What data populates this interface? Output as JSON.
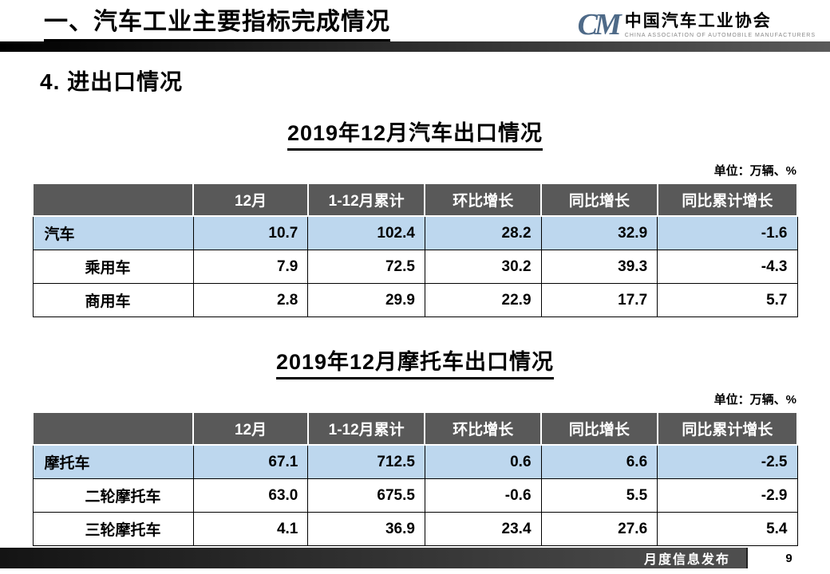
{
  "header": {
    "title": "一、汽车工业主要指标完成情况",
    "logo": {
      "mark": "CM",
      "name": "中国汽车工业协会",
      "subtitle": "CHINA ASSOCIATION OF AUTOMOBILE MANUFACTURERS"
    }
  },
  "section_title": "4. 进出口情况",
  "tables": [
    {
      "title": "2019年12月汽车出口情况",
      "unit": "单位：万辆、%",
      "columns": [
        "",
        "12月",
        "1-12月累计",
        "环比增长",
        "同比增长",
        "同比累计增长"
      ],
      "rows": [
        {
          "label": "汽车",
          "values": [
            "10.7",
            "102.4",
            "28.2",
            "32.9",
            "-1.6"
          ]
        },
        {
          "label": "乘用车",
          "values": [
            "7.9",
            "72.5",
            "30.2",
            "39.3",
            "-4.3"
          ]
        },
        {
          "label": "商用车",
          "values": [
            "2.8",
            "29.9",
            "22.9",
            "17.7",
            "5.7"
          ]
        }
      ]
    },
    {
      "title": "2019年12月摩托车出口情况",
      "unit": "单位：万辆、%",
      "columns": [
        "",
        "12月",
        "1-12月累计",
        "环比增长",
        "同比增长",
        "同比累计增长"
      ],
      "rows": [
        {
          "label": "摩托车",
          "values": [
            "67.1",
            "712.5",
            "0.6",
            "6.6",
            "-2.5"
          ]
        },
        {
          "label": "二轮摩托车",
          "values": [
            "63.0",
            "675.5",
            "-0.6",
            "5.5",
            "-2.9"
          ]
        },
        {
          "label": "三轮摩托车",
          "values": [
            "4.1",
            "36.9",
            "23.4",
            "27.6",
            "5.4"
          ]
        }
      ]
    }
  ],
  "footer": {
    "label": "月度信息发布",
    "page_number": "9"
  },
  "colors": {
    "table_header_bg": "#595959",
    "highlight_row_bg": "#BDD7EE",
    "bar_gradient_start": "#000000",
    "bar_gradient_end": "#5a5a5a"
  }
}
